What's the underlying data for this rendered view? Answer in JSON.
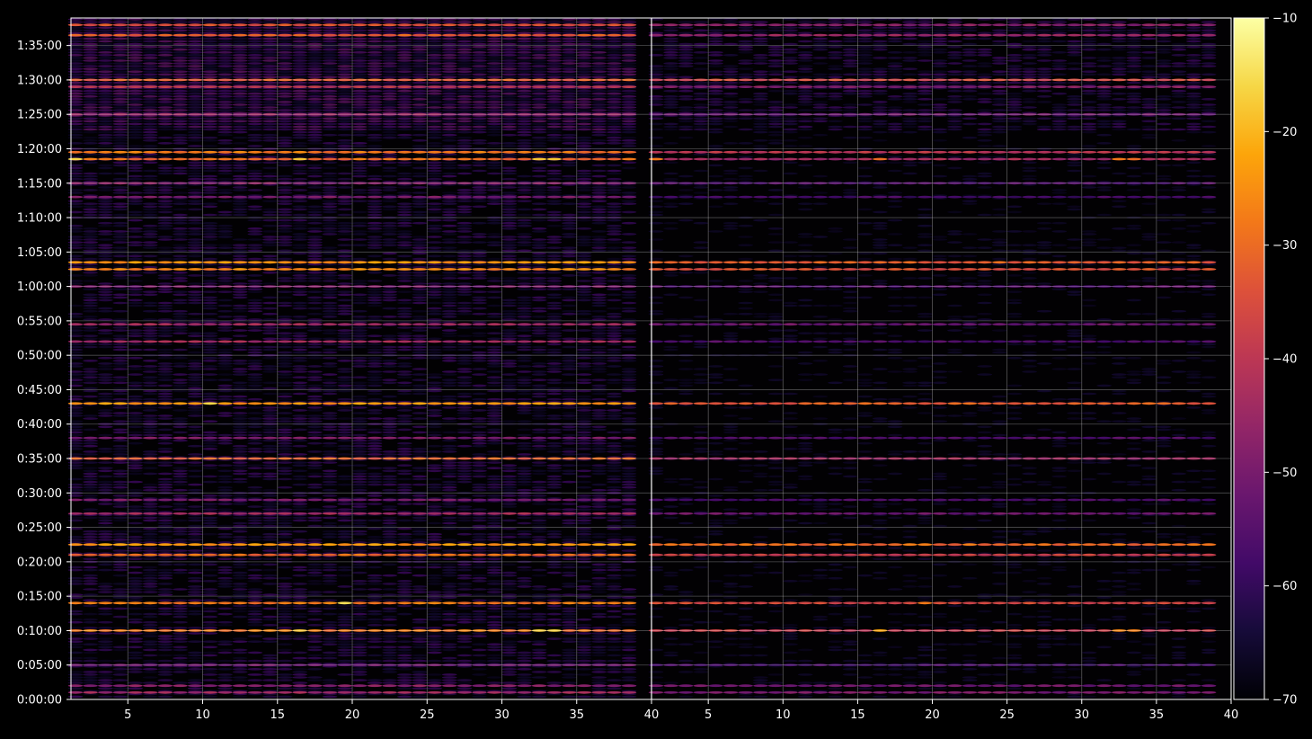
{
  "chart_data": {
    "type": "heatmap",
    "title": "",
    "colormap": "inferno",
    "background": "#000000",
    "grid": true,
    "panels": [
      {
        "name": "",
        "xlim": [
          1.2,
          40
        ],
        "ylim_seconds": [
          0,
          5940
        ],
        "xticks": [
          5,
          10,
          15,
          20,
          25,
          30,
          35,
          40
        ],
        "xtick_labels": [
          "5",
          "10",
          "15",
          "20",
          "25",
          "30",
          "35",
          "40"
        ]
      },
      {
        "name": "",
        "xlim": [
          1.2,
          40
        ],
        "ylim_seconds": [
          0,
          5940
        ],
        "xticks": [
          5,
          10,
          15,
          20,
          25,
          30,
          35,
          40
        ],
        "xtick_labels": [
          "5",
          "10",
          "15",
          "20",
          "25",
          "30",
          "35",
          "40"
        ]
      }
    ],
    "yticks": [
      "0:00:00",
      "0:05:00",
      "0:10:00",
      "0:15:00",
      "0:20:00",
      "0:25:00",
      "0:30:00",
      "0:35:00",
      "0:40:00",
      "0:45:00",
      "0:50:00",
      "0:55:00",
      "1:00:00",
      "1:05:00",
      "1:10:00",
      "1:15:00",
      "1:20:00",
      "1:25:00",
      "1:30:00",
      "1:35:00"
    ],
    "ytick_seconds": [
      0,
      300,
      600,
      900,
      1200,
      1500,
      1800,
      2100,
      2400,
      2700,
      3000,
      3300,
      3600,
      3900,
      4200,
      4500,
      4800,
      5100,
      5400,
      5700
    ],
    "colorbar": {
      "min": -70,
      "max": -10,
      "ticks": [
        -10,
        -20,
        -30,
        -40,
        -50,
        -60,
        -70
      ],
      "tick_labels": [
        "−10",
        "−20",
        "−30",
        "−40",
        "−50",
        "−60",
        "−70"
      ]
    },
    "bands": [
      {
        "t": 60,
        "left": -45,
        "right": -50
      },
      {
        "t": 120,
        "left": -48,
        "right": -52
      },
      {
        "t": 300,
        "left": -52,
        "right": -58
      },
      {
        "t": 600,
        "left": -28,
        "right": -38,
        "hot": [
          [
            16.5,
            -18,
            -22
          ],
          [
            32.5,
            -17,
            -26
          ],
          [
            33.5,
            -17,
            -27
          ]
        ]
      },
      {
        "t": 840,
        "left": -28,
        "right": -36,
        "hot": [
          [
            19.5,
            -15,
            -28
          ]
        ]
      },
      {
        "t": 1260,
        "left": -30,
        "right": -38
      },
      {
        "t": 1350,
        "left": -24,
        "right": -30
      },
      {
        "t": 1620,
        "left": -44,
        "right": -52
      },
      {
        "t": 1740,
        "left": -50,
        "right": -56
      },
      {
        "t": 2100,
        "left": -32,
        "right": -44
      },
      {
        "t": 2280,
        "left": -50,
        "right": -56
      },
      {
        "t": 2580,
        "left": -24,
        "right": -32,
        "hot": [
          [
            10.5,
            -16,
            -36
          ]
        ]
      },
      {
        "t": 3120,
        "left": -44,
        "right": -56
      },
      {
        "t": 3270,
        "left": -44,
        "right": -52
      },
      {
        "t": 3600,
        "left": -50,
        "right": -55
      },
      {
        "t": 3750,
        "left": -26,
        "right": -34
      },
      {
        "t": 3810,
        "left": -24,
        "right": -32
      },
      {
        "t": 4380,
        "left": -50,
        "right": -58
      },
      {
        "t": 4500,
        "left": -48,
        "right": -56
      },
      {
        "t": 4710,
        "left": -30,
        "right": -44,
        "hot": [
          [
            1.5,
            -16,
            -28
          ],
          [
            16.5,
            -18,
            -30
          ],
          [
            32.5,
            -18,
            -28
          ],
          [
            33.5,
            -18,
            -30
          ]
        ]
      },
      {
        "t": 4770,
        "left": -28,
        "right": -40
      },
      {
        "t": 5100,
        "left": -46,
        "right": -52
      },
      {
        "t": 5340,
        "left": -40,
        "right": -48
      },
      {
        "t": 5400,
        "left": -32,
        "right": -36
      },
      {
        "t": 5790,
        "left": -32,
        "right": -46
      },
      {
        "t": 5880,
        "left": -34,
        "right": -48
      }
    ]
  }
}
